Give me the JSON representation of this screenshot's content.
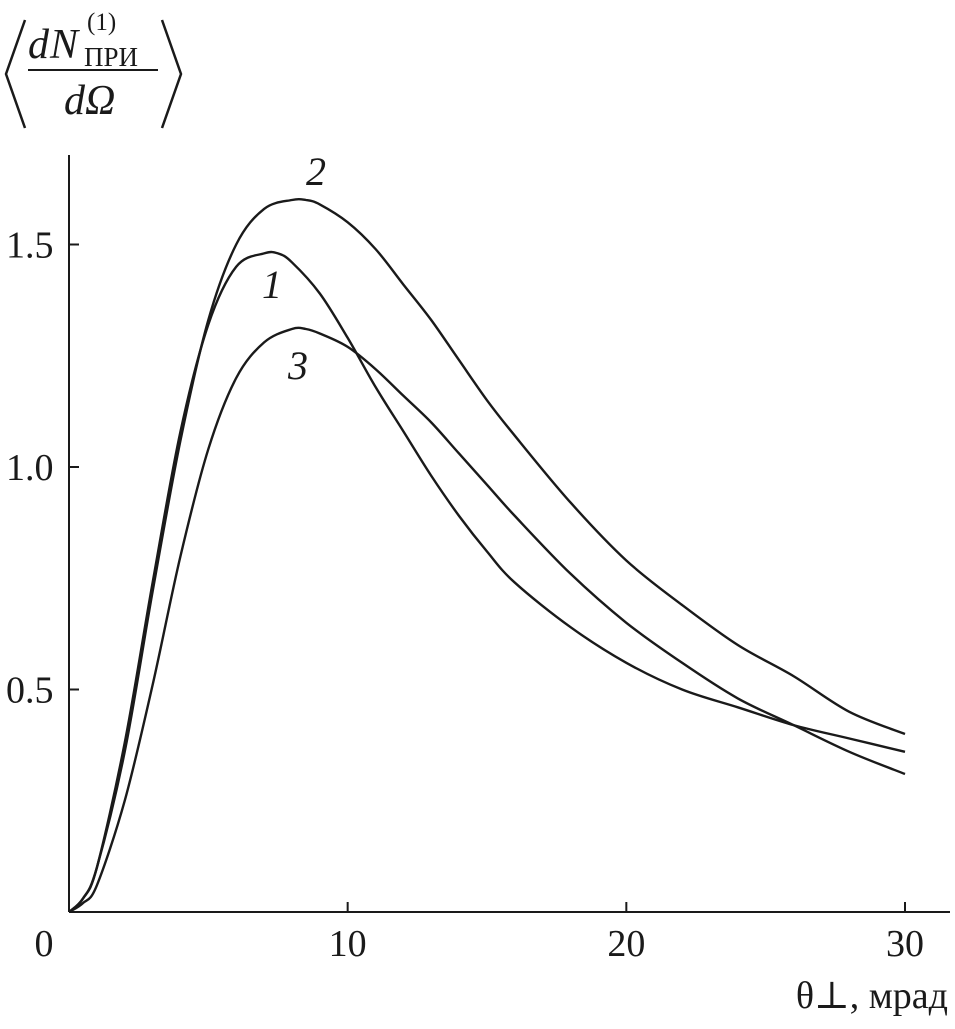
{
  "chart_data": {
    "type": "line",
    "xlabel": "θ⊥, мрад",
    "ylabel": {
      "d_top": "d",
      "N": "N",
      "superscript": "(1)",
      "subscript": "ПРИ",
      "denominator": "dΩ"
    },
    "xlim": [
      0,
      32
    ],
    "ylim": [
      0,
      1.7
    ],
    "x_ticks": [
      "0",
      "10",
      "20",
      "30"
    ],
    "y_ticks": [
      "0.5",
      "1.0",
      "1.5"
    ],
    "grid": false,
    "series": [
      {
        "name": "1",
        "color": "#1a1a1a",
        "x": [
          0,
          0.5,
          1,
          2,
          3,
          4,
          5,
          6,
          7,
          7.5,
          8,
          9,
          10,
          11,
          12,
          13,
          14,
          15,
          16,
          18,
          20,
          22,
          24,
          26,
          28,
          30
        ],
        "y": [
          0,
          0.03,
          0.1,
          0.38,
          0.74,
          1.08,
          1.32,
          1.45,
          1.48,
          1.48,
          1.46,
          1.39,
          1.29,
          1.18,
          1.08,
          0.98,
          0.89,
          0.81,
          0.74,
          0.64,
          0.56,
          0.5,
          0.46,
          0.42,
          0.39,
          0.36
        ]
      },
      {
        "name": "2",
        "color": "#1a1a1a",
        "x": [
          0,
          0.5,
          1,
          2,
          3,
          4,
          5,
          6,
          7,
          8,
          8.5,
          9,
          10,
          11,
          12,
          13,
          14,
          15,
          16,
          18,
          20,
          22,
          24,
          26,
          28,
          30
        ],
        "y": [
          0,
          0.03,
          0.1,
          0.36,
          0.72,
          1.06,
          1.33,
          1.5,
          1.58,
          1.6,
          1.6,
          1.59,
          1.55,
          1.49,
          1.41,
          1.33,
          1.24,
          1.15,
          1.07,
          0.92,
          0.79,
          0.69,
          0.6,
          0.53,
          0.45,
          0.4
        ]
      },
      {
        "name": "3",
        "color": "#1a1a1a",
        "x": [
          0,
          0.5,
          1,
          2,
          3,
          4,
          5,
          6,
          7,
          8,
          8.5,
          9,
          10,
          11,
          12,
          13,
          14,
          15,
          16,
          18,
          20,
          22,
          24,
          26,
          28,
          30
        ],
        "y": [
          0,
          0.02,
          0.06,
          0.25,
          0.51,
          0.8,
          1.04,
          1.2,
          1.28,
          1.31,
          1.31,
          1.3,
          1.27,
          1.22,
          1.16,
          1.1,
          1.03,
          0.96,
          0.89,
          0.76,
          0.65,
          0.56,
          0.48,
          0.42,
          0.36,
          0.31
        ]
      }
    ]
  }
}
